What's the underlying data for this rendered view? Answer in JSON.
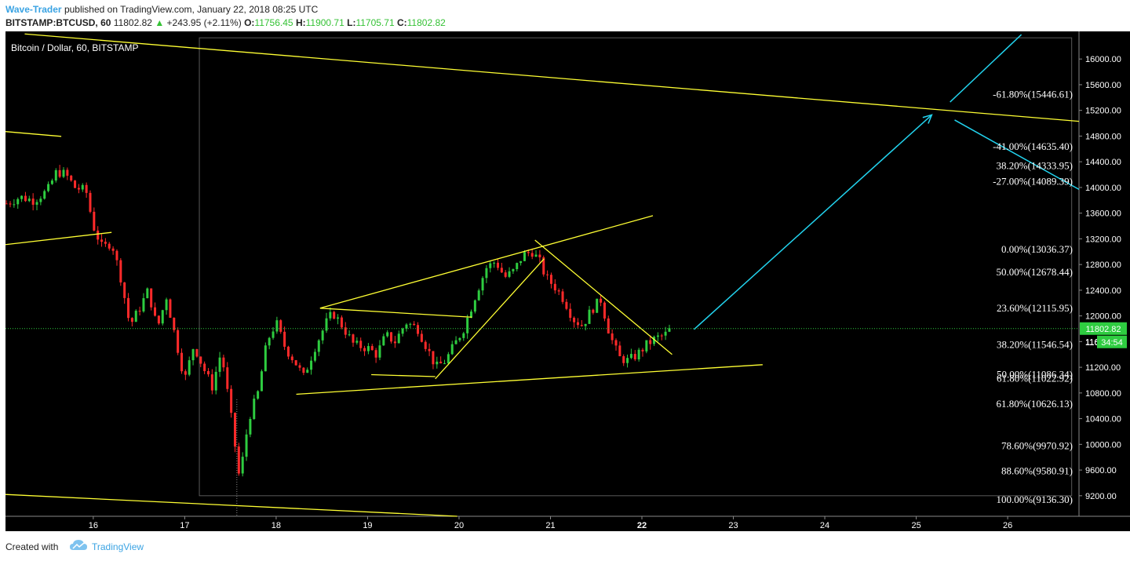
{
  "header": {
    "author": "Wave-Trader",
    "published_text": "published on TradingView.com, January 22, 2018 08:25 UTC",
    "symbol": "BITSTAMP:BTCUSD, 60",
    "last": "11802.82",
    "change": "+243.95 (+2.11%)",
    "o_label": "O:",
    "o": "11756.45",
    "h_label": "H:",
    "h": "11900.71",
    "l_label": "L:",
    "l": "11705.71",
    "c_label": "C:",
    "c": "11802.82"
  },
  "footer": {
    "created_with": "Created with",
    "brand": "TradingView"
  },
  "colors": {
    "background": "#000000",
    "up": "#2ecc40",
    "down": "#ff2a2a",
    "trendline": "#ffff33",
    "projection": "#22d3ee",
    "axis_text": "#ffffff"
  },
  "chart_data": {
    "type": "candlestick",
    "title": "Bitcoin / Dollar, 60, BITSTAMP",
    "x_ticks": [
      "16",
      "17",
      "18",
      "19",
      "20",
      "21",
      "22",
      "23",
      "24",
      "25",
      "26"
    ],
    "x_tick_values": [
      16,
      17,
      18,
      19,
      20,
      21,
      22,
      23,
      24,
      25,
      26
    ],
    "y_ticks": [
      16000,
      15600,
      15200,
      14800,
      14400,
      14000,
      13600,
      13200,
      12800,
      12400,
      12000,
      11600,
      11200,
      10800,
      10400,
      10000,
      9600,
      9200
    ],
    "y_tick_labels": [
      "16000.00",
      "15600.00",
      "15200.00",
      "14800.00",
      "14400.00",
      "14000.00",
      "13600.00",
      "13200.00",
      "12800.00",
      "12400.00",
      "12000.00",
      "11600.00",
      "11200.00",
      "10800.00",
      "10400.00",
      "10000.00",
      "9600.00",
      "9200.00"
    ],
    "ylim": [
      8880,
      16430
    ],
    "xlim": [
      15.04,
      26.78
    ],
    "current_price": 11802.82,
    "current_price_label": "11802.82",
    "countdown_label": "34:54",
    "countdown_prefix": "116",
    "fib_levels": [
      {
        "label": "-61.80%(15446.61)",
        "price": 15446.61
      },
      {
        "label": "-41.00%(14635.40)",
        "price": 14635.4
      },
      {
        "label": "38.20%(14333.95)",
        "price": 14333.95
      },
      {
        "label": "-27.00%(14089.39)",
        "price": 14089.39
      },
      {
        "label": "0.00%(13036.37)",
        "price": 13036.37
      },
      {
        "label": "50.00%(12678.44)",
        "price": 12678.44
      },
      {
        "label": "23.60%(12115.95)",
        "price": 12115.95
      },
      {
        "label": "38.20%(11546.54)",
        "price": 11546.54
      },
      {
        "label": "50.00%(11086.34)",
        "price": 11086.34
      },
      {
        "label": "61.80%(11022.92)",
        "price": 11022.92
      },
      {
        "label": "61.80%(10626.13)",
        "price": 10626.13
      },
      {
        "label": "78.60%(9970.92)",
        "price": 9970.92
      },
      {
        "label": "88.60%(9580.91)",
        "price": 9580.91
      },
      {
        "label": "100.00%(9136.30)",
        "price": 9136.3
      }
    ],
    "price_path": [
      [
        15.05,
        13750
      ],
      [
        15.2,
        13850
      ],
      [
        15.35,
        13800
      ],
      [
        15.5,
        13950
      ],
      [
        15.6,
        14250
      ],
      [
        15.7,
        14200
      ],
      [
        15.8,
        14000
      ],
      [
        15.92,
        13950
      ],
      [
        16.0,
        13400
      ],
      [
        16.1,
        13050
      ],
      [
        16.2,
        13150
      ],
      [
        16.3,
        12600
      ],
      [
        16.4,
        11850
      ],
      [
        16.5,
        12100
      ],
      [
        16.6,
        12400
      ],
      [
        16.7,
        11800
      ],
      [
        16.8,
        12300
      ],
      [
        16.9,
        11650
      ],
      [
        17.0,
        11000
      ],
      [
        17.1,
        11550
      ],
      [
        17.2,
        11200
      ],
      [
        17.3,
        10900
      ],
      [
        17.4,
        11450
      ],
      [
        17.5,
        10500
      ],
      [
        17.6,
        9450
      ],
      [
        17.7,
        10400
      ],
      [
        17.8,
        10800
      ],
      [
        17.9,
        11600
      ],
      [
        18.0,
        11900
      ],
      [
        18.1,
        11500
      ],
      [
        18.2,
        11300
      ],
      [
        18.3,
        11050
      ],
      [
        18.42,
        11500
      ],
      [
        18.55,
        11900
      ],
      [
        18.62,
        12050
      ],
      [
        18.72,
        11850
      ],
      [
        18.85,
        11550
      ],
      [
        19.0,
        11500
      ],
      [
        19.1,
        11400
      ],
      [
        19.2,
        11700
      ],
      [
        19.3,
        11600
      ],
      [
        19.42,
        11900
      ],
      [
        19.55,
        11800
      ],
      [
        19.65,
        11500
      ],
      [
        19.75,
        11200
      ],
      [
        19.85,
        11300
      ],
      [
        19.95,
        11550
      ],
      [
        20.05,
        11800
      ],
      [
        20.2,
        12400
      ],
      [
        20.3,
        12750
      ],
      [
        20.4,
        12850
      ],
      [
        20.5,
        12600
      ],
      [
        20.6,
        12700
      ],
      [
        20.7,
        12950
      ],
      [
        20.8,
        13000
      ],
      [
        20.88,
        12850
      ],
      [
        20.95,
        12600
      ],
      [
        21.05,
        12450
      ],
      [
        21.15,
        12250
      ],
      [
        21.25,
        11950
      ],
      [
        21.35,
        11850
      ],
      [
        21.45,
        12100
      ],
      [
        21.55,
        12250
      ],
      [
        21.65,
        11700
      ],
      [
        21.75,
        11350
      ],
      [
        21.85,
        11300
      ],
      [
        21.95,
        11400
      ],
      [
        22.05,
        11550
      ],
      [
        22.15,
        11650
      ],
      [
        22.25,
        11700
      ],
      [
        22.32,
        11810
      ]
    ],
    "trendlines": [
      {
        "type": "trend",
        "points": [
          [
            15.25,
            16390
          ],
          [
            26.78,
            15030
          ]
        ]
      },
      {
        "type": "trend",
        "points": [
          [
            15.04,
            14870
          ],
          [
            15.65,
            14795
          ]
        ]
      },
      {
        "type": "trend",
        "points": [
          [
            15.04,
            13110
          ],
          [
            16.2,
            13300
          ]
        ]
      },
      {
        "type": "trend",
        "points": [
          [
            15.04,
            9220
          ],
          [
            19.98,
            8880
          ]
        ]
      },
      {
        "type": "trend",
        "points": [
          [
            18.48,
            12120
          ],
          [
            22.12,
            13560
          ]
        ]
      },
      {
        "type": "trend",
        "points": [
          [
            18.48,
            12120
          ],
          [
            20.14,
            11980
          ]
        ]
      },
      {
        "type": "trend",
        "points": [
          [
            19.04,
            11085
          ],
          [
            19.74,
            11055
          ]
        ]
      },
      {
        "type": "trend",
        "points": [
          [
            18.22,
            10780
          ],
          [
            23.32,
            11240
          ]
        ]
      },
      {
        "type": "trend",
        "points": [
          [
            19.74,
            11020
          ],
          [
            20.93,
            12890
          ]
        ]
      },
      {
        "type": "trend",
        "points": [
          [
            20.83,
            13180
          ],
          [
            22.33,
            11400
          ]
        ]
      }
    ],
    "projections": [
      {
        "points": [
          [
            22.57,
            11790
          ],
          [
            25.17,
            15130
          ]
        ]
      },
      {
        "points": [
          [
            25.37,
            15330
          ],
          [
            26.15,
            16380
          ]
        ]
      },
      {
        "points": [
          [
            25.42,
            15050
          ],
          [
            26.78,
            13970
          ]
        ]
      }
    ],
    "rects": [
      {
        "x1": 17.16,
        "x2": 26.7,
        "y1": 16330,
        "y2": 9200
      }
    ],
    "vline": {
      "x": 17.57,
      "y1": 8880,
      "y2": 10700
    }
  }
}
